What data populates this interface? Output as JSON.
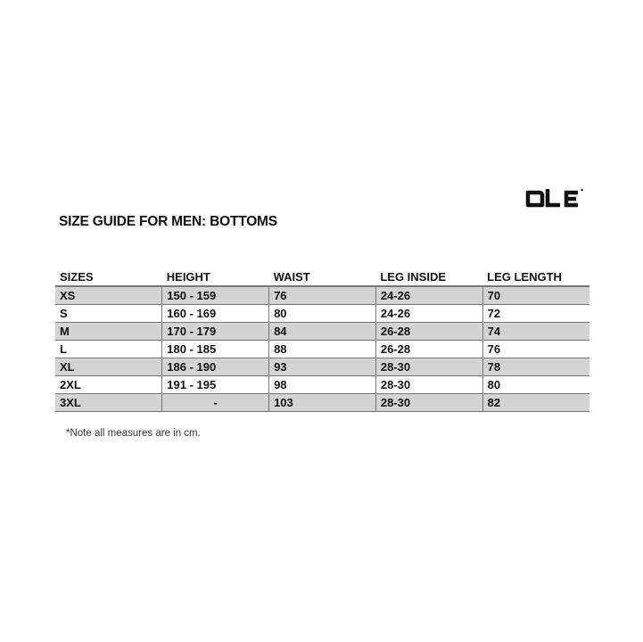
{
  "logo": {
    "text": "ALE"
  },
  "title": "SIZE GUIDE FOR MEN: BOTTOMS",
  "table": {
    "headers": [
      "SIZES",
      "HEIGHT",
      "WAIST",
      "LEG INSIDE",
      "LEG LENGTH"
    ],
    "rows": [
      [
        "XS",
        "150 - 159",
        "76",
        "24-26",
        "70"
      ],
      [
        "S",
        "160 - 169",
        "80",
        "24-26",
        "72"
      ],
      [
        "M",
        "170 - 179",
        "84",
        "26-28",
        "74"
      ],
      [
        "L",
        "180 - 185",
        "88",
        "26-28",
        "76"
      ],
      [
        "XL",
        "186 - 190",
        "93",
        "28-30",
        "78"
      ],
      [
        "2XL",
        "191 - 195",
        "98",
        "28-30",
        "80"
      ],
      [
        "3XL",
        "-",
        "103",
        "28-30",
        "82"
      ]
    ]
  },
  "note": "*Note all measures are in cm.",
  "colors": {
    "shaded_row": "#d3d3d3",
    "border": "#777777"
  }
}
